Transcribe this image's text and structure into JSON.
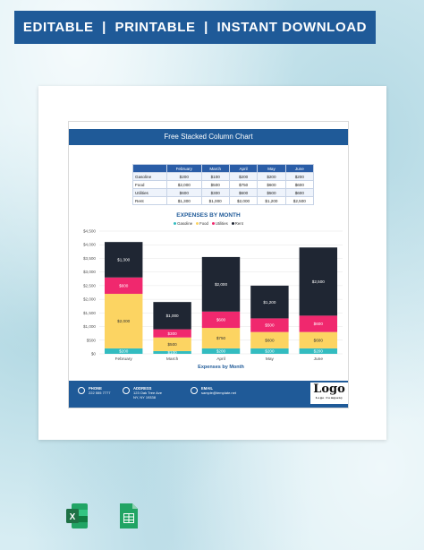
{
  "banner": {
    "text": "EDITABLE  |  PRINTABLE  |  INSTANT DOWNLOAD"
  },
  "document": {
    "title": "Free Stacked Column Chart",
    "footer": {
      "phone_label": "PHONE",
      "phone": "222 555 7777",
      "address_label": "ADDRESS",
      "address_line1": "123 Oak Tree Ave",
      "address_line2": "NY, NY 19338",
      "email_label": "EMAIL",
      "email": "sample@template.net",
      "logo_text": "Logo",
      "logo_tagline": "Logo Company"
    }
  },
  "table": {
    "headers": [
      "",
      "February",
      "March",
      "April",
      "May",
      "June"
    ],
    "rows": [
      [
        "Gasoline",
        "$200",
        "$100",
        "$200",
        "$200",
        "$200"
      ],
      [
        "Food",
        "$2,000",
        "$500",
        "$750",
        "$600",
        "$600"
      ],
      [
        "Utilities",
        "$600",
        "$300",
        "$600",
        "$500",
        "$600"
      ],
      [
        "Rent",
        "$1,300",
        "$1,000",
        "$2,000",
        "$1,200",
        "$2,500"
      ]
    ]
  },
  "chart_data": {
    "type": "bar",
    "stacked": true,
    "title": "EXPENSES BY MONTH",
    "xlabel": "Expenses by Month",
    "ylabel": "",
    "categories": [
      "February",
      "March",
      "April",
      "May",
      "June"
    ],
    "ylim": [
      0,
      4500
    ],
    "yticks": [
      "$0",
      "$500",
      "$1,000",
      "$1,500",
      "$2,000",
      "$2,500",
      "$3,000",
      "$3,500",
      "$4,000",
      "$4,500"
    ],
    "grid": true,
    "legend_position": "top",
    "series": [
      {
        "name": "Gasoline",
        "color": "#33bcc0",
        "values": [
          200,
          100,
          200,
          200,
          200
        ],
        "labels": [
          "$200",
          "$100",
          "$200",
          "$200",
          "$200"
        ]
      },
      {
        "name": "Food",
        "color": "#fcd462",
        "values": [
          2000,
          500,
          750,
          600,
          600
        ],
        "labels": [
          "$2,000",
          "$500",
          "$750",
          "$600",
          "$600"
        ]
      },
      {
        "name": "Utilities",
        "color": "#f0286e",
        "values": [
          600,
          300,
          600,
          500,
          600
        ],
        "labels": [
          "$600",
          "$300",
          "$600",
          "$500",
          "$600"
        ]
      },
      {
        "name": "Rent",
        "color": "#1f2633",
        "values": [
          1300,
          1000,
          2000,
          1200,
          2500
        ],
        "labels": [
          "$1,300",
          "$1,000",
          "$2,000",
          "$1,200",
          "$2,500"
        ]
      }
    ]
  },
  "apps": [
    {
      "name": "excel-icon",
      "color": "#1e7145",
      "letter": "X"
    },
    {
      "name": "sheets-icon",
      "color": "#21a464"
    }
  ]
}
